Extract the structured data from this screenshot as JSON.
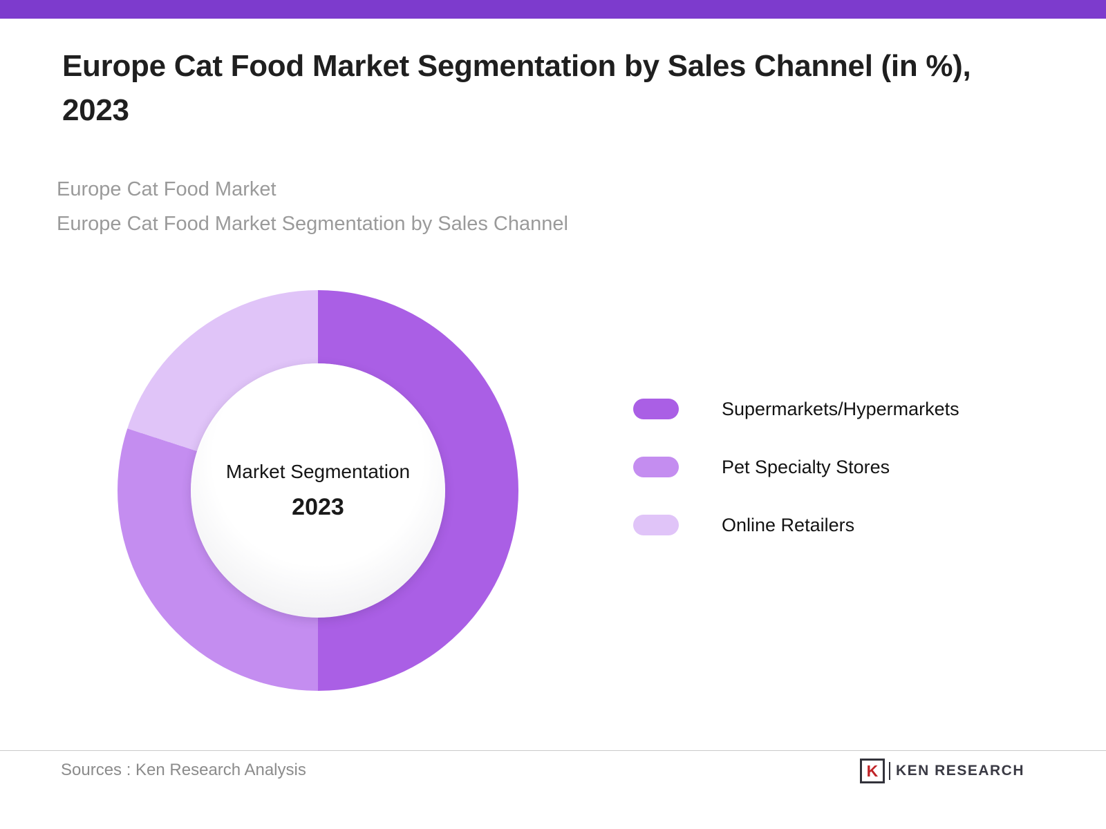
{
  "header": {
    "title": "Europe Cat Food Market Segmentation by Sales Channel (in %), 2023",
    "subtitle_line1": "Europe Cat Food Market",
    "subtitle_line2": "Europe Cat Food Market Segmentation by Sales Channel"
  },
  "chart_data": {
    "type": "pie",
    "donut": true,
    "title": "Europe Cat Food Market Segmentation by Sales Channel (in %), 2023",
    "categories": [
      "Supermarkets/Hypermarkets",
      "Pet Specialty Stores",
      "Online Retailers"
    ],
    "values": [
      50,
      30,
      20
    ],
    "unit": "%",
    "colors": [
      "#aa5fe5",
      "#c48df0",
      "#e0c4f8"
    ],
    "center_label": "Market Segmentation",
    "center_sublabel": "2023",
    "legend_position": "right",
    "start_angle_deg": 0
  },
  "footer": {
    "source": "Sources : Ken Research Analysis",
    "brand_mark_letter": "K",
    "brand_text": "KEN RESEARCH"
  },
  "theme": {
    "top_bar_color": "#7d3bcd",
    "title_color": "#1f1f1f",
    "subtitle_color": "#9a9a9a",
    "background": "#ffffff"
  }
}
